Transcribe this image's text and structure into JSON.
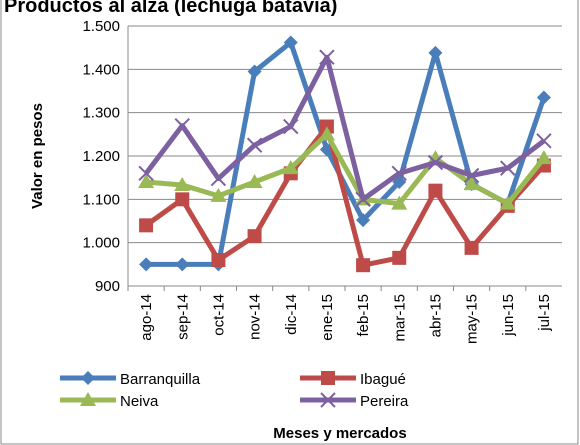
{
  "chart_data": {
    "type": "line",
    "title": "Productos al alza (lechuga batavia)",
    "x_label": "Meses  y mercados",
    "y_label": "Valor en pesos",
    "categories": [
      "ago-14",
      "sep-14",
      "oct-14",
      "nov-14",
      "dic-14",
      "ene-15",
      "feb-15",
      "mar-15",
      "abr-15",
      "may-15",
      "jun-15",
      "jul-15"
    ],
    "series": [
      {
        "name": "Barranquilla",
        "color": "#4a7ebb",
        "marker": "diamond",
        "values": [
          950,
          950,
          950,
          1395,
          1462,
          1215,
          1052,
          1140,
          1438,
          1135,
          1090,
          1335
        ]
      },
      {
        "name": "Ibagué",
        "color": "#be4b48",
        "marker": "square",
        "values": [
          1040,
          1100,
          960,
          1015,
          1160,
          1268,
          948,
          965,
          1120,
          988,
          1085,
          1178
        ]
      },
      {
        "name": "Neiva",
        "color": "#98b954",
        "marker": "triangle",
        "values": [
          1140,
          1133,
          1108,
          1140,
          1172,
          1250,
          1100,
          1090,
          1195,
          1135,
          1090,
          1195
        ]
      },
      {
        "name": "Pereira",
        "color": "#7d60a0",
        "marker": "x",
        "values": [
          1160,
          1270,
          1148,
          1225,
          1268,
          1428,
          1100,
          1160,
          1185,
          1155,
          1172,
          1235
        ]
      }
    ],
    "ylim": [
      900,
      1500
    ],
    "yticks": [
      900,
      {
        "value": 1000,
        "label": "1.000"
      },
      {
        "value": 1100,
        "label": "1.100"
      },
      {
        "value": 1200,
        "label": "1.200"
      },
      {
        "value": 1300,
        "label": "1.300"
      },
      {
        "value": 1400,
        "label": "1.400"
      },
      {
        "value": 1500,
        "label": "1.500"
      }
    ],
    "grid": true,
    "legend": "bottom"
  }
}
